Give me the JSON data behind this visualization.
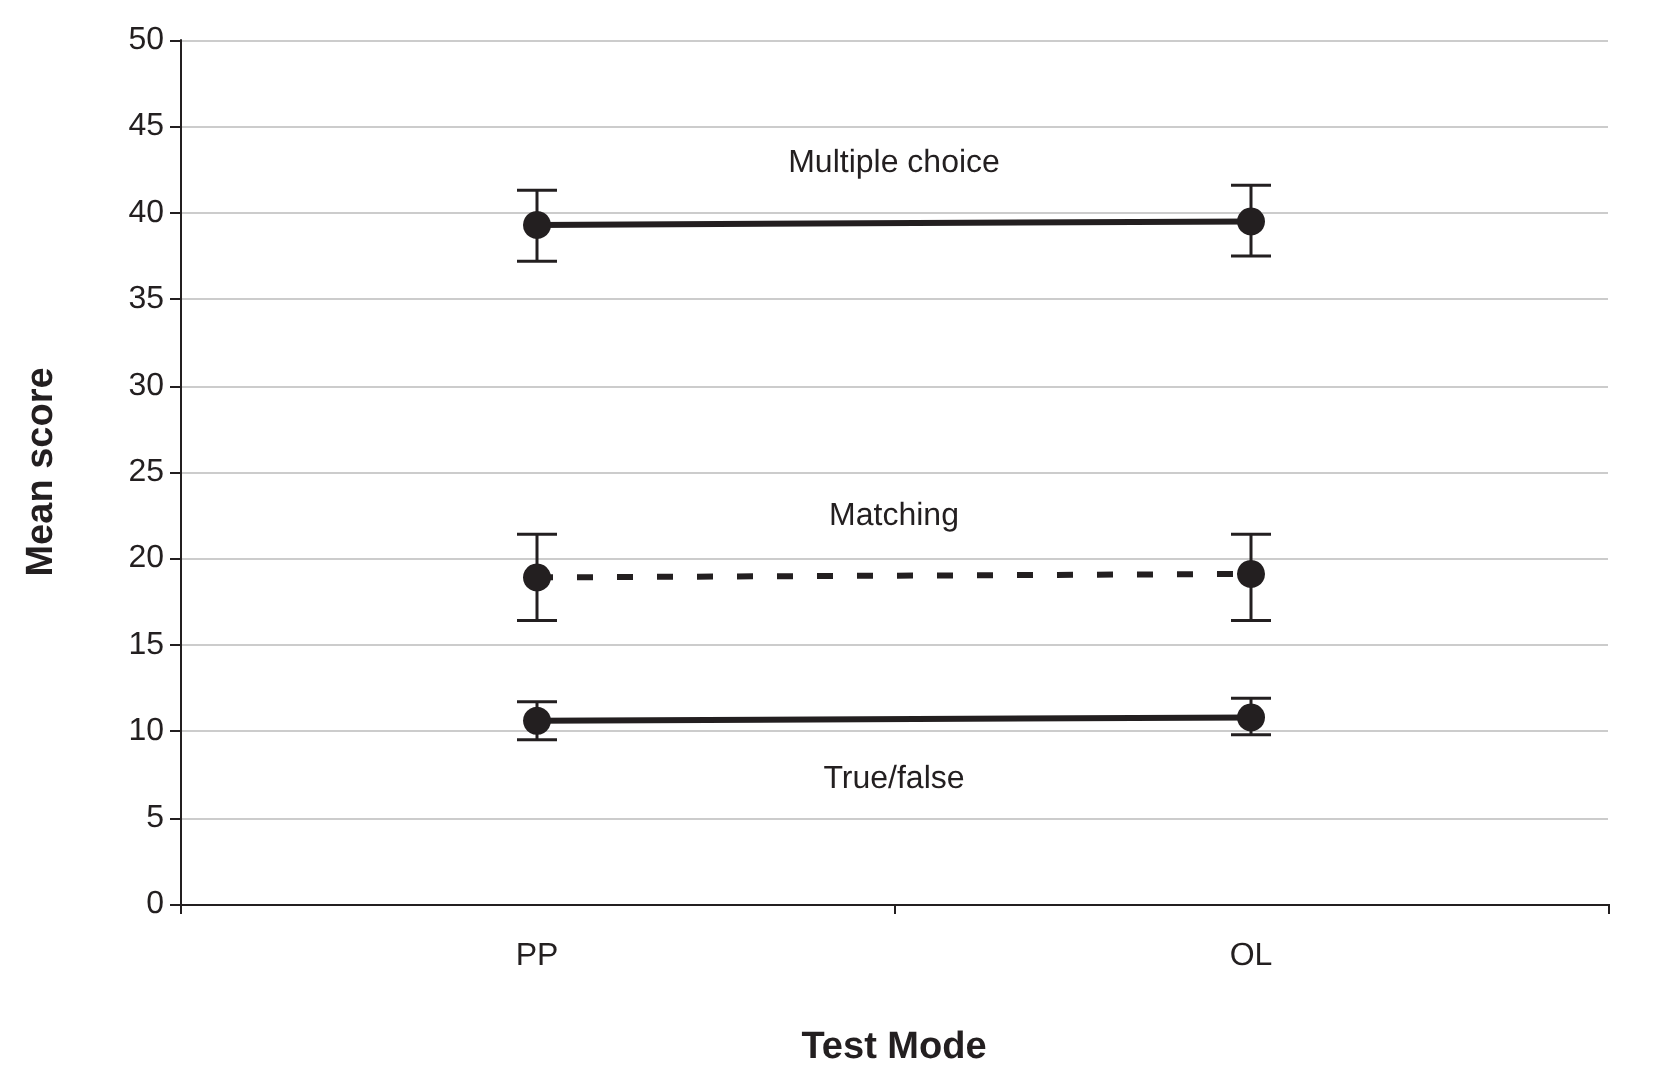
{
  "chart_data": {
    "type": "line",
    "xlabel": "Test Mode",
    "ylabel": "Mean score",
    "categories": [
      "PP",
      "OL"
    ],
    "series": [
      {
        "name": "Multiple choice",
        "color": "#231f20",
        "values": [
          39.3,
          39.5
        ],
        "errors": [
          [
            37.2,
            41.3
          ],
          [
            37.5,
            41.6
          ]
        ],
        "line_style": "solid"
      },
      {
        "name": "Matching",
        "color": "#231f20",
        "values": [
          18.9,
          19.1
        ],
        "errors": [
          [
            16.4,
            21.4
          ],
          [
            16.4,
            21.4
          ]
        ],
        "line_style": "dashed"
      },
      {
        "name": "True/false",
        "color": "#231f20",
        "values": [
          10.6,
          10.8
        ],
        "errors": [
          [
            9.5,
            11.7
          ],
          [
            9.8,
            11.9
          ]
        ],
        "line_style": "solid"
      }
    ],
    "ylim": [
      0,
      50
    ],
    "yticks": [
      0,
      5,
      10,
      15,
      20,
      25,
      30,
      35,
      40,
      45,
      50
    ],
    "grid": "y",
    "marker": "circle"
  }
}
